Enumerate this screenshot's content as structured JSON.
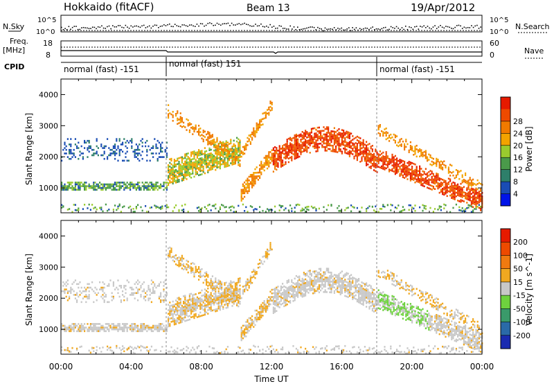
{
  "header": {
    "station": "Hokkaido (fitACF)",
    "beam": "Beam 13",
    "date": "19/Apr/2012"
  },
  "strip_labels": {
    "nsky": "N.Sky",
    "nsearch": "N.Search",
    "freq_line1": "Freq.",
    "freq_line2": "[MHz]",
    "nave": "Nave",
    "cpid": "CPID",
    "noise_tick_hi": "10^5",
    "noise_tick_lo": "10^0",
    "freq_tick_hi": "18",
    "freq_tick_lo": "8",
    "nave_tick_hi": "60",
    "nave_tick_lo": "0"
  },
  "cpid_segments": [
    {
      "label": "normal (fast) -151",
      "start_hour": 0,
      "end_hour": 6
    },
    {
      "label": "normal (fast) 151",
      "start_hour": 6,
      "end_hour": 18
    },
    {
      "label": "normal (fast) -151",
      "start_hour": 18,
      "end_hour": 24
    }
  ],
  "chart_data": [
    {
      "type": "heatmap",
      "name": "power",
      "ylabel": "Slant Range [km]",
      "xlabel": "",
      "xlim": [
        0,
        24
      ],
      "ylim": [
        200,
        4500
      ],
      "yticks": [
        1000,
        2000,
        3000,
        4000
      ],
      "colorbar": {
        "label": "Power [dB]",
        "ticks": [
          "4",
          "8",
          "12",
          "16",
          "20",
          "24",
          "28"
        ],
        "colors": [
          "#0014e8",
          "#1a4cb4",
          "#2e7f6a",
          "#4a9a4a",
          "#9acb2e",
          "#f2a300",
          "#f07a00",
          "#ee4a00",
          "#e61a00"
        ]
      }
    },
    {
      "type": "heatmap",
      "name": "velocity",
      "ylabel": "Slant Range [km]",
      "xlabel": "Time UT",
      "xlim": [
        0,
        24
      ],
      "ylim": [
        200,
        4500
      ],
      "yticks": [
        1000,
        2000,
        3000,
        4000
      ],
      "xticks": [
        "00:00",
        "04:00",
        "08:00",
        "12:00",
        "16:00",
        "20:00",
        "00:00"
      ],
      "colorbar": {
        "label": "Velocity [m s^-1]",
        "ticks": [
          "200",
          "100",
          "50",
          "15",
          "-15",
          "-50",
          "-100",
          "-200"
        ],
        "colors": [
          "#1a2bb0",
          "#2a6aa8",
          "#3a9a6a",
          "#6ed23e",
          "#c8c8c8",
          "#f0a820",
          "#f07a10",
          "#ee4a00",
          "#e61a00"
        ]
      }
    }
  ]
}
